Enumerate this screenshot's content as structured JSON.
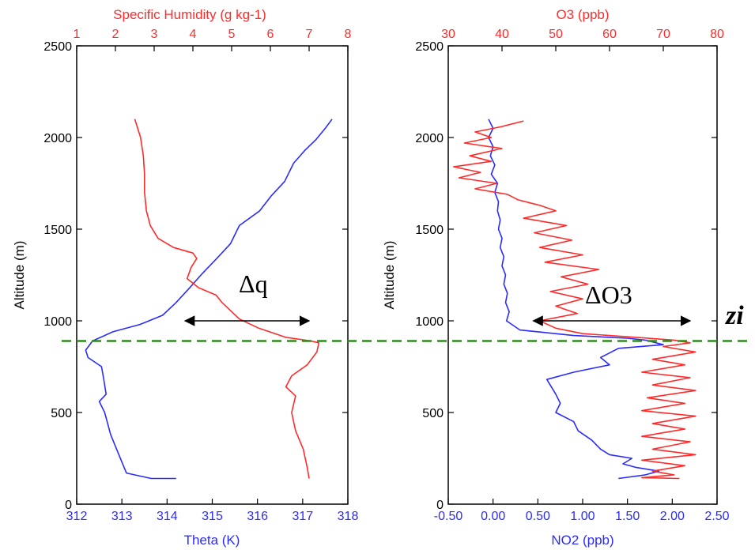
{
  "colors": {
    "blue": "#2b2bff",
    "red": "#ff2b2b",
    "black": "#000000",
    "green": "#2e8b1e"
  },
  "chart_data": [
    {
      "type": "line",
      "xlabel": "Theta (K)",
      "x2label": "Specific Humidity (g kg-1)",
      "ylabel": "Altitude (m)",
      "xlim": [
        312,
        318
      ],
      "x2lim": [
        1,
        8
      ],
      "ylim": [
        0,
        2500
      ],
      "x_ticks": [
        "312",
        "313",
        "314",
        "315",
        "316",
        "317",
        "318"
      ],
      "x2_ticks": [
        "1",
        "2",
        "3",
        "4",
        "5",
        "6",
        "7",
        "8"
      ],
      "y_ticks": [
        "0",
        "500",
        "1000",
        "1500",
        "2000",
        "2500"
      ],
      "annotation": "Δq",
      "arrow_x2": [
        3.8,
        7.0
      ],
      "arrow_y": 1000,
      "zi_altitude": 890,
      "series": [
        {
          "axis": "bottom",
          "color": "#2b2bff",
          "points": [
            [
              314.2,
              140
            ],
            [
              313.65,
              140
            ],
            [
              313.1,
              170
            ],
            [
              312.95,
              260
            ],
            [
              312.75,
              380
            ],
            [
              312.62,
              500
            ],
            [
              312.5,
              560
            ],
            [
              312.65,
              600
            ],
            [
              312.6,
              680
            ],
            [
              312.55,
              750
            ],
            [
              312.25,
              800
            ],
            [
              312.2,
              840
            ],
            [
              312.35,
              890
            ],
            [
              312.8,
              940
            ],
            [
              313.4,
              980
            ],
            [
              313.9,
              1030
            ],
            [
              314.2,
              1100
            ],
            [
              314.5,
              1180
            ],
            [
              314.75,
              1250
            ],
            [
              315.1,
              1340
            ],
            [
              315.4,
              1420
            ],
            [
              315.6,
              1520
            ],
            [
              316.05,
              1600
            ],
            [
              316.3,
              1680
            ],
            [
              316.6,
              1760
            ],
            [
              316.8,
              1860
            ],
            [
              317.05,
              1930
            ],
            [
              317.3,
              1990
            ],
            [
              317.5,
              2050
            ],
            [
              317.65,
              2100
            ]
          ]
        },
        {
          "axis": "top",
          "color": "#ff2b2b",
          "points": [
            [
              2.5,
              2100
            ],
            [
              2.65,
              2000
            ],
            [
              2.72,
              1900
            ],
            [
              2.75,
              1800
            ],
            [
              2.75,
              1700
            ],
            [
              2.8,
              1600
            ],
            [
              2.9,
              1520
            ],
            [
              3.1,
              1450
            ],
            [
              3.5,
              1400
            ],
            [
              4.0,
              1370
            ],
            [
              4.1,
              1340
            ],
            [
              3.95,
              1290
            ],
            [
              3.85,
              1230
            ],
            [
              4.15,
              1180
            ],
            [
              4.6,
              1140
            ],
            [
              4.75,
              1100
            ],
            [
              4.95,
              1060
            ],
            [
              5.2,
              1010
            ],
            [
              5.7,
              960
            ],
            [
              6.4,
              910
            ],
            [
              7.05,
              890
            ],
            [
              7.25,
              880
            ],
            [
              7.2,
              830
            ],
            [
              6.95,
              760
            ],
            [
              6.55,
              700
            ],
            [
              6.4,
              640
            ],
            [
              6.65,
              590
            ],
            [
              6.55,
              500
            ],
            [
              6.65,
              400
            ],
            [
              6.85,
              300
            ],
            [
              6.95,
              200
            ],
            [
              7.0,
              140
            ]
          ]
        }
      ]
    },
    {
      "type": "line",
      "xlabel": "NO2 (ppb)",
      "x2label": "O3 (ppb)",
      "ylabel": "Altitude (m)",
      "xlim": [
        -0.5,
        2.5
      ],
      "x2lim": [
        30,
        80
      ],
      "ylim": [
        0,
        2500
      ],
      "x_ticks": [
        "-0.50",
        "0.00",
        "0.50",
        "1.00",
        "1.50",
        "2.00",
        "2.50"
      ],
      "x2_ticks": [
        "30",
        "40",
        "50",
        "60",
        "70",
        "80"
      ],
      "y_ticks": [
        "0",
        "500",
        "1000",
        "1500",
        "2000",
        "2500"
      ],
      "annotation": "ΔO3",
      "side_label": "zi",
      "arrow_x": [
        0.45,
        2.2
      ],
      "arrow_y": 1000,
      "zi_altitude": 890,
      "series": [
        {
          "axis": "bottom",
          "color": "#2b2bff",
          "points": [
            [
              -0.05,
              2100
            ],
            [
              0.0,
              2050
            ],
            [
              -0.05,
              2000
            ],
            [
              0.0,
              1950
            ],
            [
              -0.03,
              1900
            ],
            [
              0.02,
              1850
            ],
            [
              -0.02,
              1800
            ],
            [
              0.05,
              1750
            ],
            [
              0.02,
              1700
            ],
            [
              0.06,
              1650
            ],
            [
              0.05,
              1600
            ],
            [
              0.08,
              1550
            ],
            [
              0.06,
              1500
            ],
            [
              0.1,
              1450
            ],
            [
              0.08,
              1400
            ],
            [
              0.12,
              1350
            ],
            [
              0.1,
              1300
            ],
            [
              0.14,
              1250
            ],
            [
              0.12,
              1200
            ],
            [
              0.16,
              1150
            ],
            [
              0.14,
              1100
            ],
            [
              0.18,
              1050
            ],
            [
              0.15,
              1000
            ],
            [
              0.3,
              950
            ],
            [
              0.9,
              920
            ],
            [
              1.5,
              905
            ],
            [
              1.7,
              895
            ],
            [
              1.9,
              870
            ],
            [
              1.4,
              850
            ],
            [
              1.2,
              800
            ],
            [
              1.3,
              760
            ],
            [
              0.9,
              720
            ],
            [
              0.6,
              680
            ],
            [
              0.7,
              600
            ],
            [
              0.75,
              550
            ],
            [
              0.7,
              500
            ],
            [
              0.9,
              450
            ],
            [
              0.95,
              400
            ],
            [
              1.1,
              350
            ],
            [
              1.2,
              300
            ],
            [
              1.3,
              270
            ],
            [
              1.55,
              250
            ],
            [
              1.45,
              220
            ],
            [
              1.6,
              200
            ],
            [
              1.85,
              180
            ],
            [
              1.7,
              160
            ],
            [
              1.4,
              140
            ]
          ]
        },
        {
          "axis": "top",
          "color": "#ff2b2b",
          "points": [
            [
              44,
              2090
            ],
            [
              40,
              2060
            ],
            [
              35,
              2030
            ],
            [
              38,
              2000
            ],
            [
              33,
              1970
            ],
            [
              40,
              1940
            ],
            [
              34,
              1900
            ],
            [
              38,
              1870
            ],
            [
              31,
              1840
            ],
            [
              36,
              1810
            ],
            [
              32,
              1780
            ],
            [
              39,
              1750
            ],
            [
              35,
              1720
            ],
            [
              41,
              1690
            ],
            [
              43,
              1660
            ],
            [
              47,
              1630
            ],
            [
              50,
              1600
            ],
            [
              44,
              1560
            ],
            [
              52,
              1520
            ],
            [
              46,
              1480
            ],
            [
              53,
              1440
            ],
            [
              47,
              1400
            ],
            [
              55,
              1360
            ],
            [
              48,
              1320
            ],
            [
              58,
              1280
            ],
            [
              51,
              1240
            ],
            [
              56,
              1200
            ],
            [
              49,
              1160
            ],
            [
              55,
              1120
            ],
            [
              50,
              1080
            ],
            [
              54,
              1040
            ],
            [
              47,
              1000
            ],
            [
              50,
              960
            ],
            [
              55,
              930
            ],
            [
              65,
              910
            ],
            [
              72,
              895
            ],
            [
              75,
              880
            ],
            [
              70,
              860
            ],
            [
              76,
              830
            ],
            [
              68,
              790
            ],
            [
              74,
              760
            ],
            [
              66,
              720
            ],
            [
              75,
              690
            ],
            [
              68,
              650
            ],
            [
              76,
              620
            ],
            [
              67,
              580
            ],
            [
              74,
              550
            ],
            [
              66,
              510
            ],
            [
              76,
              480
            ],
            [
              68,
              440
            ],
            [
              74,
              410
            ],
            [
              66,
              370
            ],
            [
              75,
              340
            ],
            [
              68,
              300
            ],
            [
              76,
              270
            ],
            [
              66,
              240
            ],
            [
              74,
              210
            ],
            [
              68,
              180
            ],
            [
              72,
              160
            ],
            [
              66,
              145
            ],
            [
              73,
              140
            ]
          ]
        }
      ]
    }
  ]
}
